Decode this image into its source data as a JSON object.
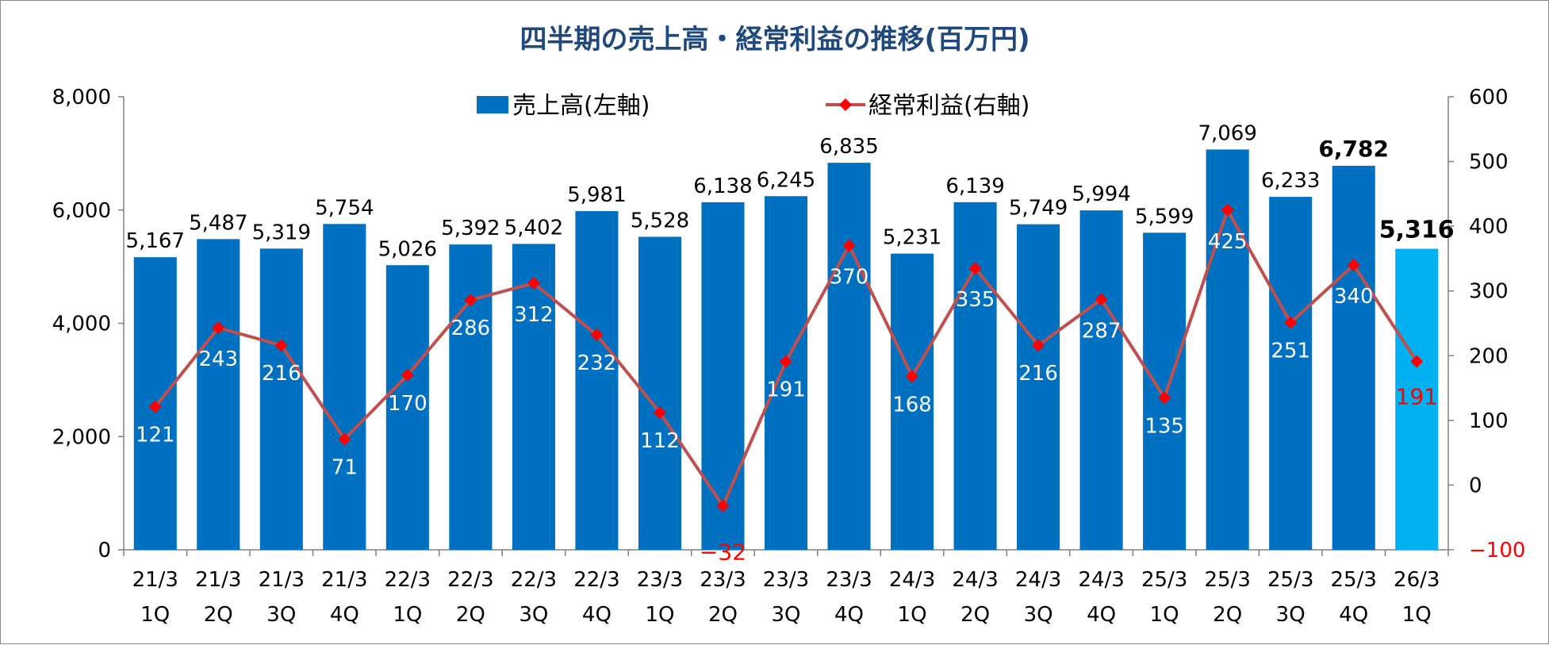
{
  "chart_data": {
    "type": "bar+line",
    "title": "四半期の売上高・経常利益の推移(百万円)",
    "categories": [
      [
        "21/3",
        "1Q"
      ],
      [
        "21/3",
        "2Q"
      ],
      [
        "21/3",
        "3Q"
      ],
      [
        "21/3",
        "4Q"
      ],
      [
        "22/3",
        "1Q"
      ],
      [
        "22/3",
        "2Q"
      ],
      [
        "22/3",
        "3Q"
      ],
      [
        "22/3",
        "4Q"
      ],
      [
        "23/3",
        "1Q"
      ],
      [
        "23/3",
        "2Q"
      ],
      [
        "23/3",
        "3Q"
      ],
      [
        "23/3",
        "4Q"
      ],
      [
        "24/3",
        "1Q"
      ],
      [
        "24/3",
        "2Q"
      ],
      [
        "24/3",
        "3Q"
      ],
      [
        "24/3",
        "4Q"
      ],
      [
        "25/3",
        "1Q"
      ],
      [
        "25/3",
        "2Q"
      ],
      [
        "25/3",
        "3Q"
      ],
      [
        "25/3",
        "4Q"
      ],
      [
        "26/3",
        "1Q"
      ]
    ],
    "series": [
      {
        "name": "売上高(左軸)",
        "kind": "bar",
        "axis": "left",
        "color": "#0070c0",
        "highlight_color": "#00b0f0",
        "values": [
          5167,
          5487,
          5319,
          5754,
          5026,
          5392,
          5402,
          5981,
          5528,
          6138,
          6245,
          6835,
          5231,
          6139,
          5749,
          5994,
          5599,
          7069,
          6233,
          6782,
          5316
        ],
        "labels": [
          "5,167",
          "5,487",
          "5,319",
          "5,754",
          "5,026",
          "5,392",
          "5,402",
          "5,981",
          "5,528",
          "6,138",
          "6,245",
          "6,835",
          "5,231",
          "6,139",
          "5,749",
          "5,994",
          "5,599",
          "7,069",
          "6,233",
          "6,782",
          "5,316"
        ]
      },
      {
        "name": "経常利益(右軸)",
        "kind": "line",
        "axis": "right",
        "color": "#c0504d",
        "marker_color": "#ff0000",
        "values": [
          121,
          243,
          216,
          71,
          170,
          286,
          312,
          232,
          112,
          -32,
          191,
          370,
          168,
          335,
          216,
          287,
          135,
          425,
          251,
          340,
          191
        ],
        "labels": [
          "121",
          "243",
          "216",
          "71",
          "170",
          "286",
          "312",
          "232",
          "112",
          "−32",
          "191",
          "370",
          "168",
          "335",
          "216",
          "287",
          "135",
          "425",
          "251",
          "340",
          "191"
        ]
      }
    ],
    "y_left": {
      "min": 0,
      "max": 8000,
      "ticks": [
        0,
        2000,
        4000,
        6000,
        8000
      ],
      "tick_labels": [
        "0",
        "2,000",
        "4,000",
        "6,000",
        "8,000"
      ]
    },
    "y_right": {
      "min": -100,
      "max": 600,
      "ticks": [
        -100,
        0,
        100,
        200,
        300,
        400,
        500,
        600
      ],
      "tick_labels": [
        "−100",
        "0",
        "100",
        "200",
        "300",
        "400",
        "500",
        "600"
      ]
    },
    "legend_position": "top"
  }
}
